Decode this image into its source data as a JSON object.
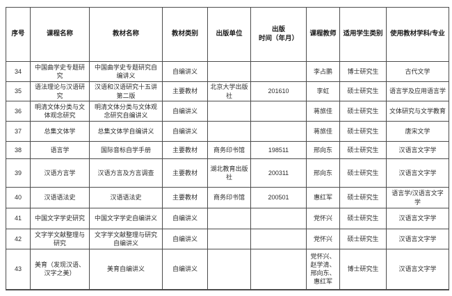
{
  "table": {
    "headers": [
      "序号",
      "课程名称",
      "教材名称",
      "教材类别",
      "出版单位",
      "出版\n时间（年月）",
      "课程教师",
      "适用学生类别",
      "使用教材学科/专业"
    ],
    "rows": [
      [
        "34",
        "中国曲学史专题研究",
        "中国曲学史专题研究自编讲义",
        "自编讲义",
        "",
        "",
        "李占鹏",
        "博士研究生",
        "古代文学"
      ],
      [
        "35",
        "语法理论与汉语研究",
        "汉语和汉语研究十五讲第二版",
        "主要教材",
        "北京大学出版社",
        "201610",
        "李虹",
        "硕士研究生",
        "语言学及应用语言学"
      ],
      [
        "36",
        "明清文体分类与文体观念研究",
        "明清文体分类与文体观念研究自编讲义",
        "自编讲义",
        "",
        "",
        "蒋旅佳",
        "硕士研究生",
        "文体研究与文学教育"
      ],
      [
        "37",
        "总集文体学",
        "总集文体学自编讲义",
        "自编讲义",
        "",
        "",
        "蒋旅佳",
        "硕士研究生",
        "唐宋文学"
      ],
      [
        "38",
        "语言学",
        "国际音标自学手册",
        "主要教材",
        "商务印书馆",
        "198511",
        "邢向东",
        "硕士研究生",
        "汉语言文字学"
      ],
      [
        "39",
        "汉语方言学",
        "汉语方言及方言调查",
        "主要教材",
        "湖北教育出版社",
        "200311",
        "邢向东",
        "硕士研究生",
        "汉语言文字学"
      ],
      [
        "40",
        "汉语语法史",
        "汉语语法史",
        "主要教材",
        "商务印书馆",
        "200501",
        "惠红军",
        "硕士研究生",
        "语言学/汉语言文字学"
      ],
      [
        "41",
        "中国文字学史研究",
        "中国文字学史自编讲义",
        "自编讲义",
        "",
        "",
        "党怀兴",
        "硕士研究生",
        "汉语言文字学"
      ],
      [
        "42",
        "文字学文献整理与研究",
        "文字学文献整理与研究自编讲义",
        "自编讲义",
        "",
        "",
        "党怀兴",
        "硕士研究生",
        "汉语言文字学"
      ],
      [
        "43",
        "美育（发现汉语、汉字之美）",
        "美育自编讲义",
        "自编讲义",
        "",
        "",
        "党怀兴、\n赵学清、\n邢向东、\n惠红军",
        "博士研究生",
        "汉语言文字学"
      ]
    ]
  }
}
